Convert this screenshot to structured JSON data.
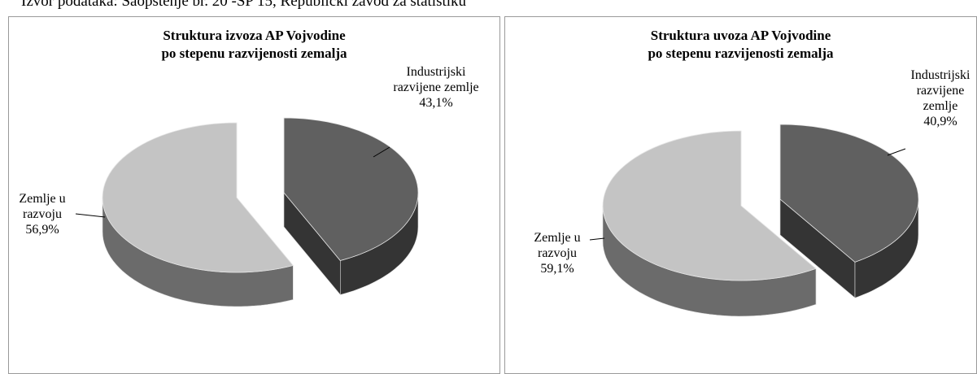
{
  "source": "Izvor podataka: Saopštenje br. 20 -SP 15, Republički zavod za statistiku",
  "chart_data": [
    {
      "type": "pie3d",
      "title": "Struktura izvoza AP Vojvodine",
      "subtitle": "po stepenu razvijenosti zemalja",
      "categories": [
        "Industrijski razvijene zemlje",
        "Zemlje u razvoju"
      ],
      "values": [
        43.1,
        56.9
      ],
      "value_labels": [
        "43,1%",
        "56,9%"
      ],
      "colors": [
        "#606060",
        "#c4c4c4"
      ]
    },
    {
      "type": "pie3d",
      "title": "Struktura uvoza AP Vojvodine",
      "subtitle": "po stepenu razvijenosti zemalja",
      "categories": [
        "Industrijski razvijene zemlje",
        "Zemlje u razvoju"
      ],
      "values": [
        40.9,
        59.1
      ],
      "value_labels": [
        "40,9%",
        "59,1%"
      ],
      "colors": [
        "#606060",
        "#c4c4c4"
      ]
    }
  ]
}
